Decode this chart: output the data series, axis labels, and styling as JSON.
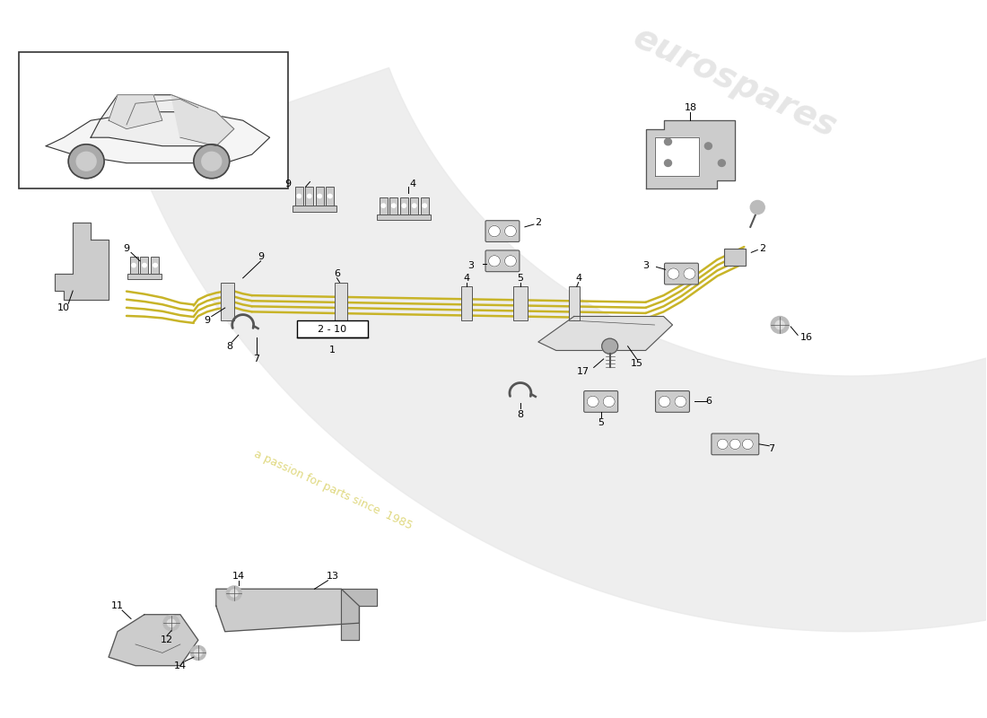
{
  "bg_color": "#ffffff",
  "tube_color": "#c8b428",
  "part_color": "#cccccc",
  "part_edge": "#555555",
  "watermark1": "eurospares",
  "watermark2": "a passion for parts since  1985",
  "wm1_color": "#d5d5d5",
  "wm2_color": "#d8cf60",
  "fig_width": 11.0,
  "fig_height": 8.0,
  "dpi": 100,
  "range_label": "2 - 10",
  "range_ref": "1"
}
